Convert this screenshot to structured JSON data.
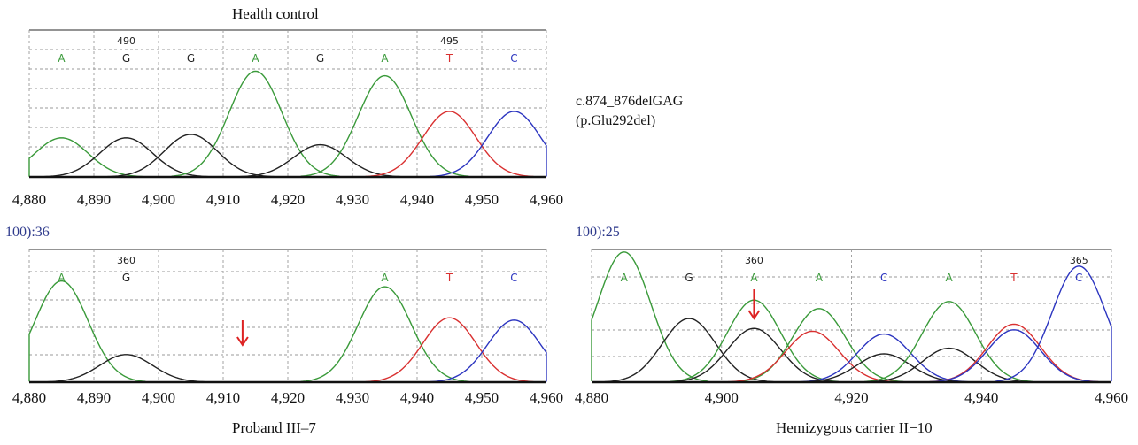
{
  "panels": {
    "top": {
      "title": "Health control"
    },
    "bottom_left": {
      "title": "Proband III–7",
      "truncated_label": "100):36"
    },
    "bottom_right": {
      "title": "Hemizygous carrier II−10",
      "truncated_label": "100):25"
    }
  },
  "variant": {
    "line1": "c.874_876delGAG",
    "line2": "(p.Glu292del)"
  },
  "colors": {
    "A": "#3a9a3a",
    "G": "#222222",
    "T": "#d93030",
    "C": "#2c35c0",
    "arrow": "#dd2222",
    "grid": "#9a9a9a",
    "axis": "#111111"
  },
  "chart_data": [
    {
      "type": "line",
      "title": "Health control",
      "xlim": [
        4880,
        4960
      ],
      "x_ticks": [
        "4,880",
        "4,890",
        "4,900",
        "4,910",
        "4,920",
        "4,930",
        "4,940",
        "4,950",
        "4,960"
      ],
      "x_tick_values": [
        4880,
        4890,
        4900,
        4910,
        4920,
        4930,
        4940,
        4950,
        4960
      ],
      "position_labels": [
        {
          "x": 4895,
          "text": "490"
        },
        {
          "x": 4945,
          "text": "495"
        }
      ],
      "bases": [
        {
          "x": 4885,
          "base": "A"
        },
        {
          "x": 4895,
          "base": "G"
        },
        {
          "x": 4905,
          "base": "G"
        },
        {
          "x": 4915,
          "base": "A"
        },
        {
          "x": 4925,
          "base": "G"
        },
        {
          "x": 4935,
          "base": "A"
        },
        {
          "x": 4945,
          "base": "T"
        },
        {
          "x": 4955,
          "base": "C"
        }
      ],
      "peaks": [
        {
          "base": "A",
          "x": 4885,
          "h": 0.34
        },
        {
          "base": "G",
          "x": 4895,
          "h": 0.34
        },
        {
          "base": "G",
          "x": 4905,
          "h": 0.37
        },
        {
          "base": "A",
          "x": 4915,
          "h": 0.92
        },
        {
          "base": "G",
          "x": 4925,
          "h": 0.28
        },
        {
          "base": "A",
          "x": 4935,
          "h": 0.88
        },
        {
          "base": "T",
          "x": 4945,
          "h": 0.57
        },
        {
          "base": "C",
          "x": 4955,
          "h": 0.57
        }
      ]
    },
    {
      "type": "line",
      "title": "Proband III–7",
      "xlim": [
        4880,
        4960
      ],
      "x_ticks": [
        "4,880",
        "4,890",
        "4,900",
        "4,910",
        "4,920",
        "4,930",
        "4,940",
        "4,950",
        "4,960"
      ],
      "x_tick_values": [
        4880,
        4890,
        4900,
        4910,
        4920,
        4930,
        4940,
        4950,
        4960
      ],
      "position_labels": [
        {
          "x": 4895,
          "text": "360"
        }
      ],
      "bases": [
        {
          "x": 4885,
          "base": "A"
        },
        {
          "x": 4895,
          "base": "G"
        },
        {
          "x": 4935,
          "base": "A"
        },
        {
          "x": 4945,
          "base": "T"
        },
        {
          "x": 4955,
          "base": "C"
        }
      ],
      "peaks": [
        {
          "base": "A",
          "x": 4885,
          "h": 0.88
        },
        {
          "base": "G",
          "x": 4895,
          "h": 0.24
        },
        {
          "base": "A",
          "x": 4935,
          "h": 0.83
        },
        {
          "base": "T",
          "x": 4945,
          "h": 0.56
        },
        {
          "base": "C",
          "x": 4955,
          "h": 0.54
        }
      ],
      "arrow_x": 4913
    },
    {
      "type": "line",
      "title": "Hemizygous carrier II−10",
      "xlim": [
        4880,
        4960
      ],
      "x_ticks": [
        "4,880",
        "4,900",
        "4,920",
        "4,940",
        "4,960"
      ],
      "x_tick_values": [
        4880,
        4900,
        4920,
        4940,
        4960
      ],
      "position_labels": [
        {
          "x": 4905,
          "text": "360"
        },
        {
          "x": 4955,
          "text": "365"
        }
      ],
      "bases": [
        {
          "x": 4885,
          "base": "A"
        },
        {
          "x": 4895,
          "base": "G"
        },
        {
          "x": 4905,
          "base": "A"
        },
        {
          "x": 4915,
          "base": "A"
        },
        {
          "x": 4925,
          "base": "C"
        },
        {
          "x": 4935,
          "base": "A"
        },
        {
          "x": 4945,
          "base": "T"
        },
        {
          "x": 4955,
          "base": "C"
        }
      ],
      "peaks": [
        {
          "base": "A",
          "x": 4885,
          "h": 0.92
        },
        {
          "base": "G",
          "x": 4895,
          "h": 0.45
        },
        {
          "base": "A",
          "x": 4905,
          "h": 0.58
        },
        {
          "base": "G",
          "x": 4905,
          "h": 0.38
        },
        {
          "base": "A",
          "x": 4915,
          "h": 0.52
        },
        {
          "base": "T",
          "x": 4914,
          "h": 0.36
        },
        {
          "base": "C",
          "x": 4925,
          "h": 0.34
        },
        {
          "base": "G",
          "x": 4925,
          "h": 0.2
        },
        {
          "base": "A",
          "x": 4935,
          "h": 0.57
        },
        {
          "base": "G",
          "x": 4935,
          "h": 0.24
        },
        {
          "base": "T",
          "x": 4945,
          "h": 0.41
        },
        {
          "base": "C",
          "x": 4945,
          "h": 0.37
        },
        {
          "base": "C",
          "x": 4955,
          "h": 0.82
        }
      ],
      "arrow_x": 4905
    }
  ]
}
